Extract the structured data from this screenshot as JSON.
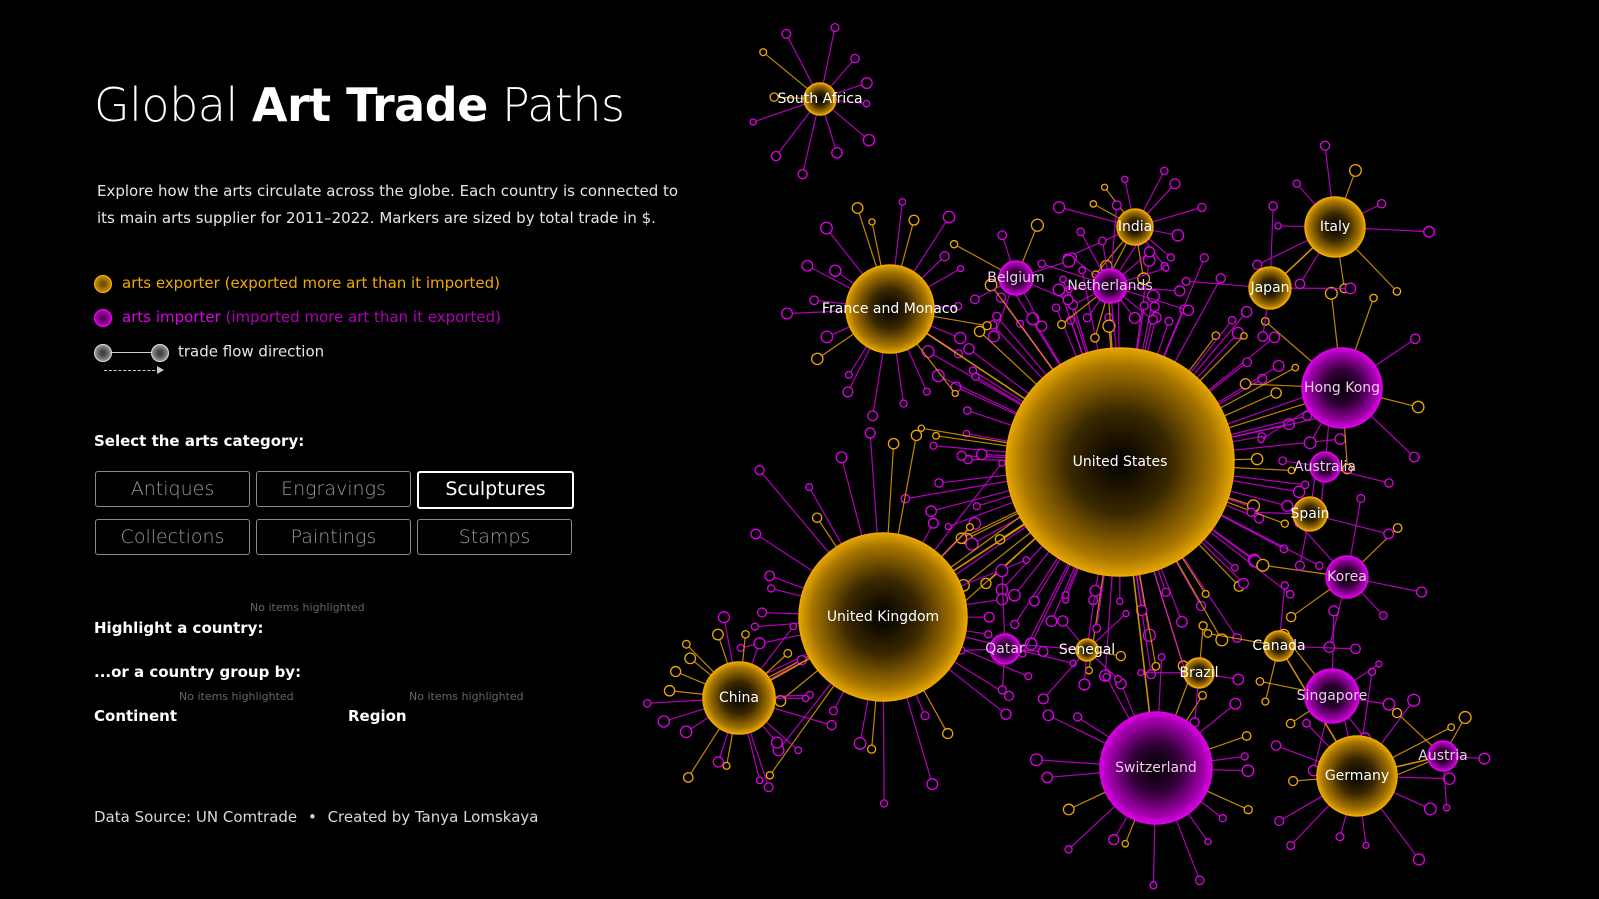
{
  "title": {
    "prefix": "Global ",
    "bold": "Art Trade",
    "suffix": " Paths"
  },
  "description": "Explore how the arts circulate across the globe. Each country is connected to its main arts supplier for 2011–2022. Markers are sized by total trade in $.",
  "legend": {
    "exporter": {
      "name": "arts exporter",
      "note": "(exported more art than it imported)",
      "color": "#f0a800"
    },
    "importer": {
      "name": "arts importer",
      "note": "(imported more art than it exported)",
      "color": "#e000e8"
    },
    "flow": "trade flow direction"
  },
  "category": {
    "label": "Select the arts category:",
    "options": [
      "Antiques",
      "Engravings",
      "Sculptures",
      "Collections",
      "Paintings",
      "Stamps"
    ],
    "selected": "Sculptures"
  },
  "highlight": {
    "country_label": "Highlight a country:",
    "group_label": "...or a country group by:",
    "continent_label": "Continent",
    "region_label": "Region",
    "empty_hint": "No items highlighted"
  },
  "footer": {
    "source": "Data Source: UN Comtrade",
    "sep": "•",
    "credit": "Created by Tanya Lomskaya"
  },
  "network": {
    "nodes": [
      {
        "name": "United States",
        "type": "exporter"
      },
      {
        "name": "United Kingdom",
        "type": "exporter"
      },
      {
        "name": "Switzerland",
        "type": "importer"
      },
      {
        "name": "Germany",
        "type": "exporter"
      },
      {
        "name": "France and Monaco",
        "type": "exporter"
      },
      {
        "name": "Hong Kong",
        "type": "importer"
      },
      {
        "name": "China",
        "type": "exporter"
      },
      {
        "name": "Italy",
        "type": "exporter"
      },
      {
        "name": "Singapore",
        "type": "importer"
      },
      {
        "name": "Korea",
        "type": "importer"
      },
      {
        "name": "Japan",
        "type": "exporter"
      },
      {
        "name": "India",
        "type": "exporter"
      },
      {
        "name": "Netherlands",
        "type": "importer"
      },
      {
        "name": "Belgium",
        "type": "importer"
      },
      {
        "name": "Australia",
        "type": "importer"
      },
      {
        "name": "Spain",
        "type": "exporter"
      },
      {
        "name": "Canada",
        "type": "exporter"
      },
      {
        "name": "Qatar",
        "type": "importer"
      },
      {
        "name": "Senegal",
        "type": "exporter"
      },
      {
        "name": "Brazil",
        "type": "exporter"
      },
      {
        "name": "Austria",
        "type": "importer"
      },
      {
        "name": "South Africa",
        "type": "exporter"
      }
    ]
  }
}
